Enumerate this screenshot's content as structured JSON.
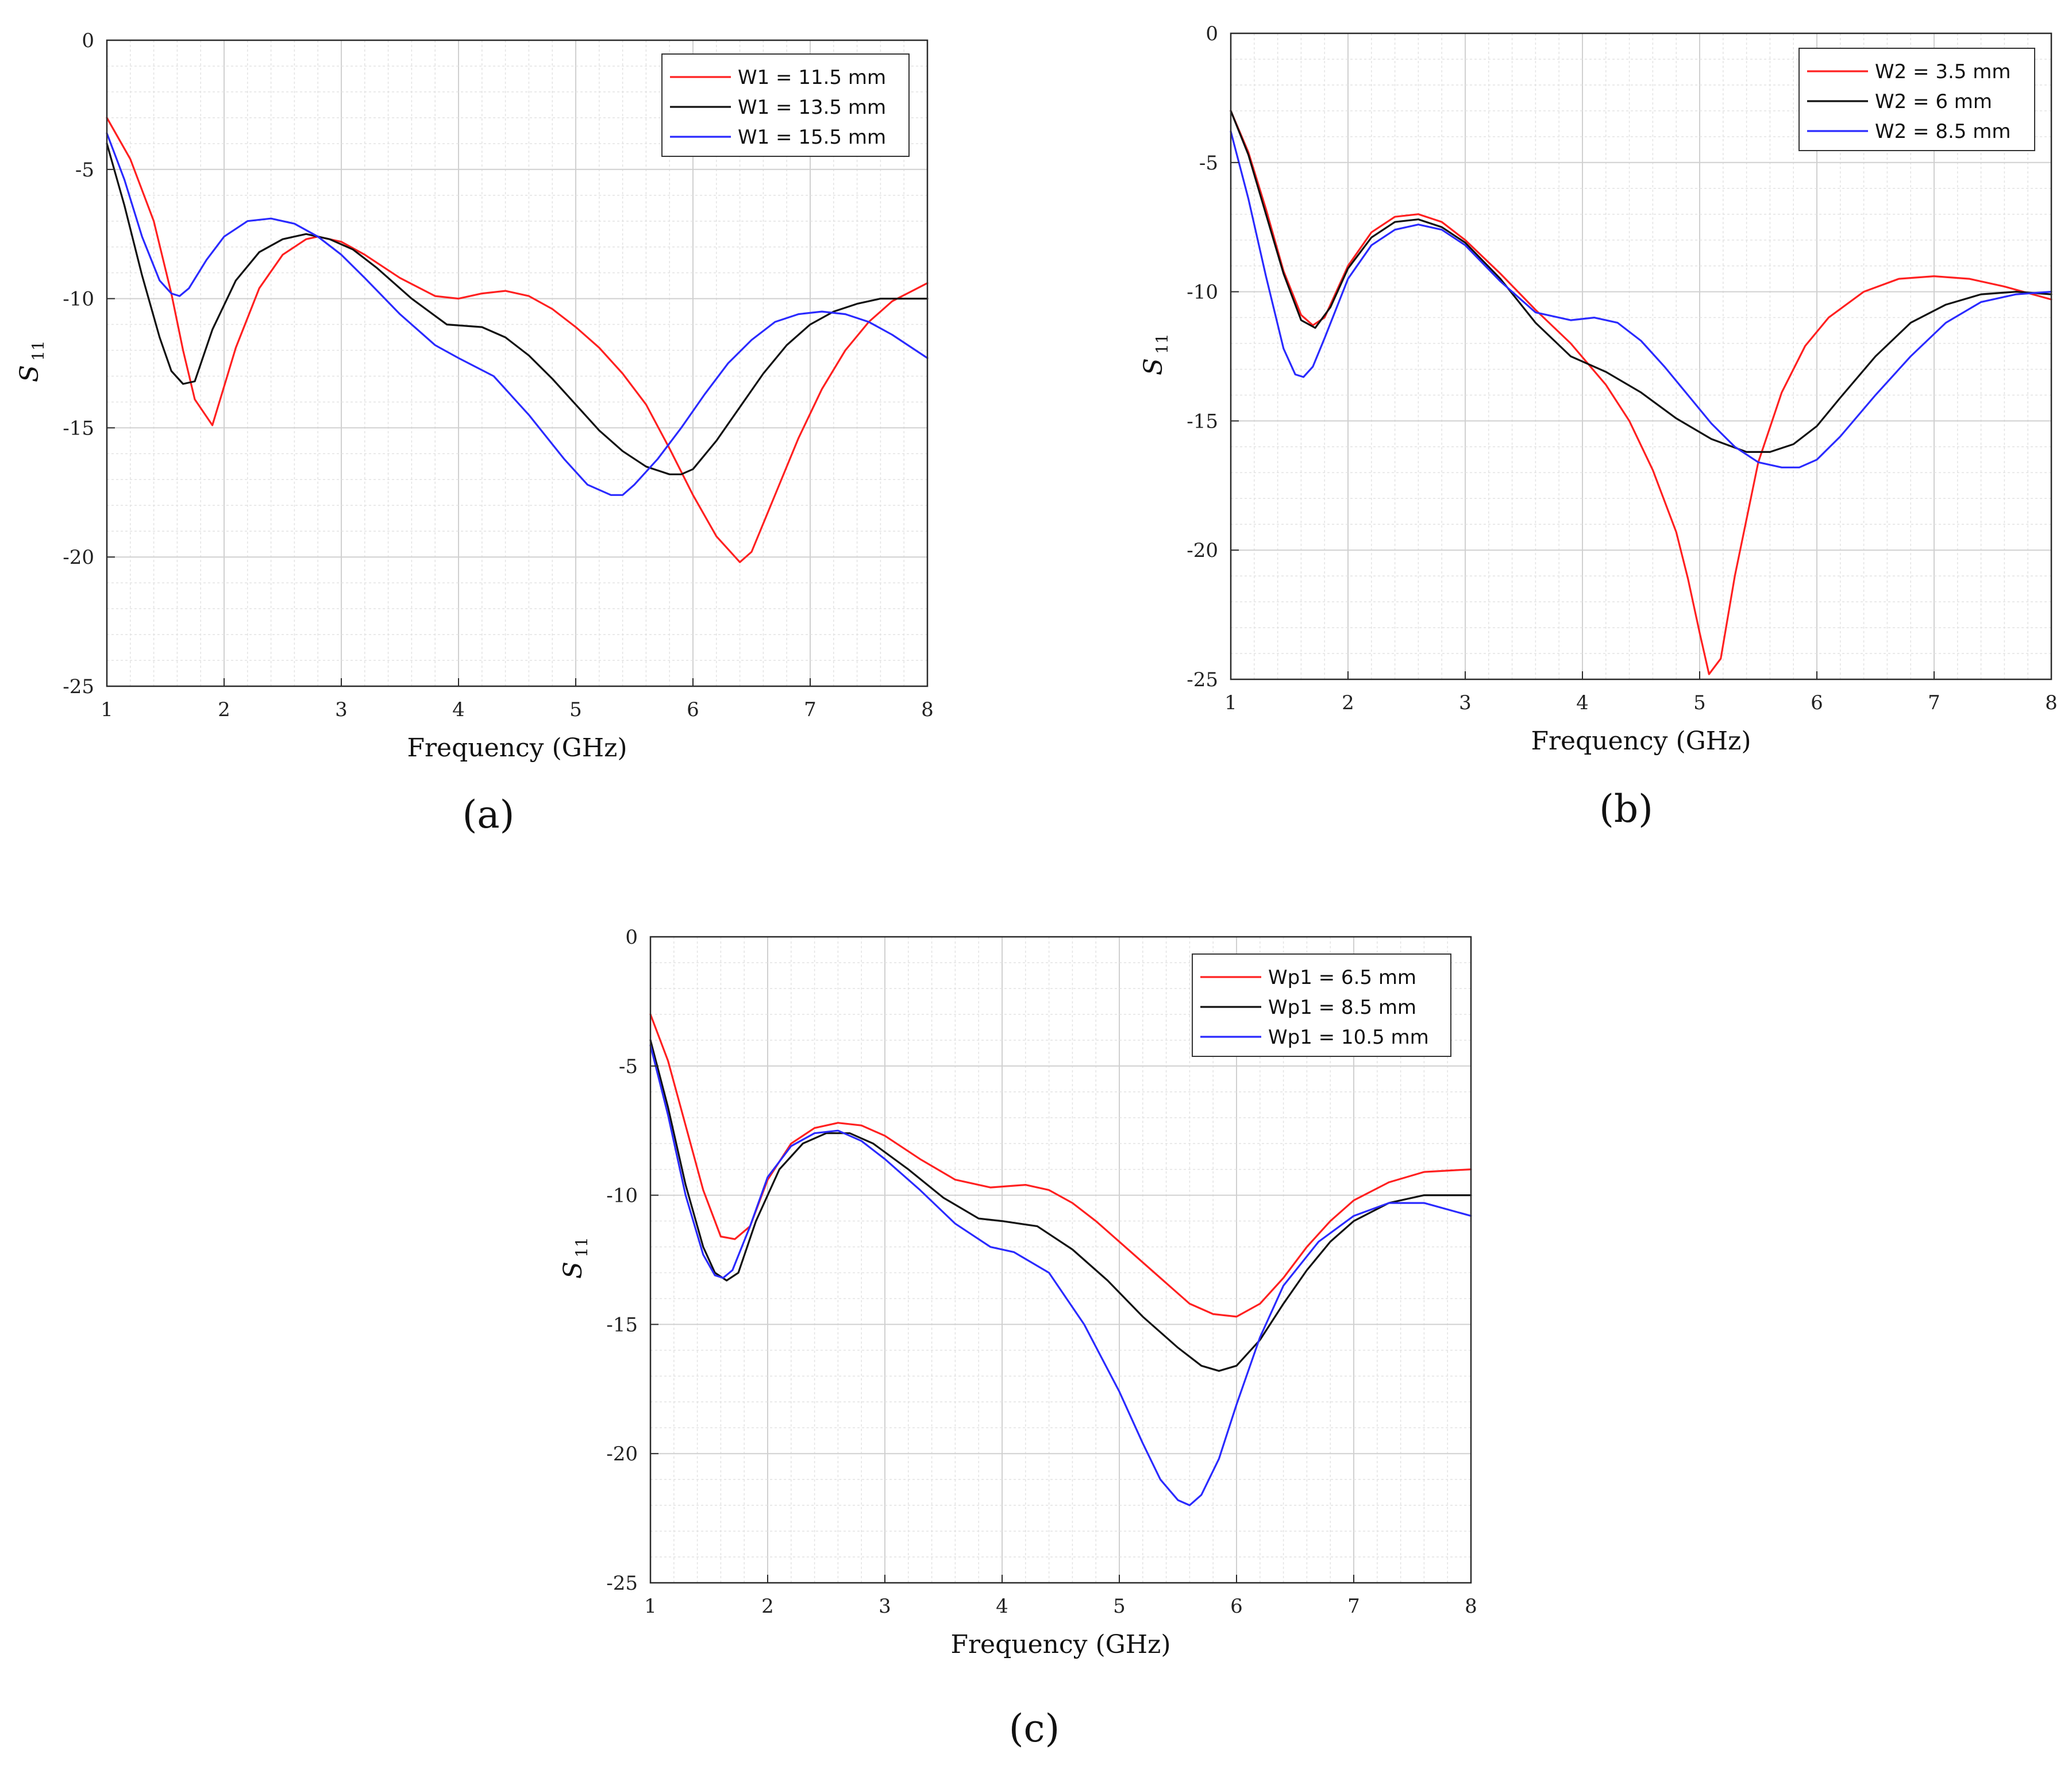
{
  "chart_data": [
    {
      "type": "line",
      "panel_label": "(a)",
      "xlabel": "Frequency (GHz)",
      "ylabel": "S",
      "ylabel_sub": "11",
      "xlim": [
        1,
        8
      ],
      "ylim": [
        -25,
        0
      ],
      "xticks": [
        1,
        2,
        3,
        4,
        5,
        6,
        7,
        8
      ],
      "yticks": [
        0,
        -5,
        -10,
        -15,
        -20,
        -25
      ],
      "grid": true,
      "legend_position": "top-right",
      "series": [
        {
          "name": "W1 = 11.5 mm",
          "color": "#ff2020",
          "x": [
            1,
            1.2,
            1.4,
            1.55,
            1.65,
            1.75,
            1.9,
            2.1,
            2.3,
            2.5,
            2.7,
            2.8,
            3.0,
            3.2,
            3.5,
            3.8,
            4.0,
            4.2,
            4.4,
            4.6,
            4.8,
            5.0,
            5.2,
            5.4,
            5.6,
            5.8,
            6.0,
            6.2,
            6.4,
            6.5,
            6.7,
            6.9,
            7.1,
            7.3,
            7.5,
            7.7,
            8.0
          ],
          "y": [
            -3.0,
            -4.6,
            -7.0,
            -9.8,
            -12.0,
            -13.9,
            -14.9,
            -11.9,
            -9.6,
            -8.3,
            -7.7,
            -7.6,
            -7.8,
            -8.3,
            -9.2,
            -9.9,
            -10.0,
            -9.8,
            -9.7,
            -9.9,
            -10.4,
            -11.1,
            -11.9,
            -12.9,
            -14.1,
            -15.8,
            -17.6,
            -19.2,
            -20.2,
            -19.8,
            -17.6,
            -15.4,
            -13.5,
            -12.0,
            -10.9,
            -10.1,
            -9.4
          ]
        },
        {
          "name": "W1 = 13.5 mm",
          "color": "#111111",
          "x": [
            1,
            1.15,
            1.3,
            1.45,
            1.55,
            1.65,
            1.75,
            1.9,
            2.1,
            2.3,
            2.5,
            2.7,
            2.9,
            3.1,
            3.3,
            3.6,
            3.9,
            4.2,
            4.4,
            4.6,
            4.8,
            5.0,
            5.2,
            5.4,
            5.6,
            5.8,
            5.9,
            6.0,
            6.2,
            6.4,
            6.6,
            6.8,
            7.0,
            7.2,
            7.4,
            7.6,
            7.8,
            8.0
          ],
          "y": [
            -4.0,
            -6.4,
            -9.1,
            -11.5,
            -12.8,
            -13.3,
            -13.2,
            -11.2,
            -9.3,
            -8.2,
            -7.7,
            -7.5,
            -7.7,
            -8.1,
            -8.8,
            -10.0,
            -11.0,
            -11.1,
            -11.5,
            -12.2,
            -13.1,
            -14.1,
            -15.1,
            -15.9,
            -16.5,
            -16.8,
            -16.8,
            -16.6,
            -15.5,
            -14.2,
            -12.9,
            -11.8,
            -11.0,
            -10.5,
            -10.2,
            -10.0,
            -10.0,
            -10.0
          ]
        },
        {
          "name": "W1 = 15.5 mm",
          "color": "#2a2aff",
          "x": [
            1,
            1.15,
            1.3,
            1.45,
            1.55,
            1.62,
            1.7,
            1.85,
            2.0,
            2.2,
            2.4,
            2.6,
            2.8,
            3.0,
            3.2,
            3.5,
            3.8,
            4.0,
            4.3,
            4.6,
            4.9,
            5.1,
            5.3,
            5.4,
            5.5,
            5.7,
            5.9,
            6.1,
            6.3,
            6.5,
            6.7,
            6.9,
            7.1,
            7.3,
            7.5,
            7.7,
            8.0
          ],
          "y": [
            -3.6,
            -5.4,
            -7.6,
            -9.3,
            -9.8,
            -9.9,
            -9.6,
            -8.5,
            -7.6,
            -7.0,
            -6.9,
            -7.1,
            -7.6,
            -8.3,
            -9.2,
            -10.6,
            -11.8,
            -12.3,
            -13.0,
            -14.5,
            -16.2,
            -17.2,
            -17.6,
            -17.6,
            -17.2,
            -16.2,
            -15.0,
            -13.7,
            -12.5,
            -11.6,
            -10.9,
            -10.6,
            -10.5,
            -10.6,
            -10.9,
            -11.4,
            -12.3
          ]
        }
      ]
    },
    {
      "type": "line",
      "panel_label": "(b)",
      "xlabel": "Frequency (GHz)",
      "ylabel": "S",
      "ylabel_sub": "11",
      "xlim": [
        1,
        8
      ],
      "ylim": [
        -25,
        0
      ],
      "xticks": [
        1,
        2,
        3,
        4,
        5,
        6,
        7,
        8
      ],
      "yticks": [
        0,
        -5,
        -10,
        -15,
        -20,
        -25
      ],
      "grid": true,
      "legend_position": "top-right",
      "series": [
        {
          "name": "W2 = 3.5 mm",
          "color": "#ff2020",
          "x": [
            1,
            1.15,
            1.3,
            1.45,
            1.6,
            1.7,
            1.8,
            2.0,
            2.2,
            2.4,
            2.6,
            2.8,
            3.0,
            3.3,
            3.6,
            3.9,
            4.2,
            4.4,
            4.6,
            4.8,
            4.9,
            5.0,
            5.08,
            5.18,
            5.3,
            5.5,
            5.7,
            5.9,
            6.1,
            6.4,
            6.7,
            7.0,
            7.3,
            7.6,
            8.0
          ],
          "y": [
            -3.0,
            -4.6,
            -6.8,
            -9.2,
            -10.9,
            -11.3,
            -11.0,
            -9.0,
            -7.7,
            -7.1,
            -7.0,
            -7.3,
            -8.0,
            -9.3,
            -10.7,
            -12.0,
            -13.6,
            -15.0,
            -16.9,
            -19.3,
            -21.1,
            -23.2,
            -24.8,
            -24.2,
            -21.0,
            -16.6,
            -13.9,
            -12.1,
            -11.0,
            -10.0,
            -9.5,
            -9.4,
            -9.5,
            -9.8,
            -10.3
          ]
        },
        {
          "name": "W2 = 6 mm",
          "color": "#111111",
          "x": [
            1,
            1.15,
            1.3,
            1.45,
            1.6,
            1.72,
            1.85,
            2.0,
            2.2,
            2.4,
            2.6,
            2.8,
            3.0,
            3.3,
            3.6,
            3.9,
            4.2,
            4.5,
            4.8,
            5.1,
            5.4,
            5.6,
            5.8,
            6.0,
            6.2,
            6.5,
            6.8,
            7.1,
            7.4,
            7.7,
            8.0
          ],
          "y": [
            -3.0,
            -4.7,
            -7.0,
            -9.3,
            -11.1,
            -11.4,
            -10.6,
            -9.1,
            -7.9,
            -7.3,
            -7.2,
            -7.5,
            -8.1,
            -9.5,
            -11.2,
            -12.5,
            -13.1,
            -13.9,
            -14.9,
            -15.7,
            -16.2,
            -16.2,
            -15.9,
            -15.2,
            -14.1,
            -12.5,
            -11.2,
            -10.5,
            -10.1,
            -10.0,
            -10.1
          ]
        },
        {
          "name": "W2 = 8.5 mm",
          "color": "#2a2aff",
          "x": [
            1,
            1.15,
            1.3,
            1.45,
            1.55,
            1.62,
            1.7,
            1.8,
            2.0,
            2.2,
            2.4,
            2.6,
            2.8,
            3.0,
            3.3,
            3.6,
            3.9,
            4.1,
            4.3,
            4.5,
            4.7,
            4.9,
            5.1,
            5.3,
            5.5,
            5.7,
            5.85,
            6.0,
            6.2,
            6.5,
            6.8,
            7.1,
            7.4,
            7.7,
            8.0
          ],
          "y": [
            -3.8,
            -6.4,
            -9.4,
            -12.2,
            -13.2,
            -13.3,
            -12.9,
            -11.8,
            -9.5,
            -8.2,
            -7.6,
            -7.4,
            -7.6,
            -8.2,
            -9.6,
            -10.8,
            -11.1,
            -11.0,
            -11.2,
            -11.9,
            -12.9,
            -14.0,
            -15.1,
            -16.0,
            -16.6,
            -16.8,
            -16.8,
            -16.5,
            -15.6,
            -14.0,
            -12.5,
            -11.2,
            -10.4,
            -10.1,
            -10.0
          ]
        }
      ]
    },
    {
      "type": "line",
      "panel_label": "(c)",
      "xlabel": "Frequency (GHz)",
      "ylabel": "S",
      "ylabel_sub": "11",
      "xlim": [
        1,
        8
      ],
      "ylim": [
        -25,
        0
      ],
      "xticks": [
        1,
        2,
        3,
        4,
        5,
        6,
        7,
        8
      ],
      "yticks": [
        0,
        -5,
        -10,
        -15,
        -20,
        -25
      ],
      "grid": true,
      "legend_position": "top-right",
      "series": [
        {
          "name": "Wp1 = 6.5 mm",
          "color": "#ff2020",
          "x": [
            1,
            1.15,
            1.3,
            1.45,
            1.6,
            1.72,
            1.85,
            2.0,
            2.2,
            2.4,
            2.6,
            2.8,
            3.0,
            3.3,
            3.6,
            3.9,
            4.2,
            4.4,
            4.6,
            4.8,
            5.0,
            5.2,
            5.4,
            5.6,
            5.8,
            6.0,
            6.2,
            6.4,
            6.6,
            6.8,
            7.0,
            7.3,
            7.6,
            8.0
          ],
          "y": [
            -3.0,
            -4.8,
            -7.3,
            -9.8,
            -11.6,
            -11.7,
            -11.2,
            -9.4,
            -8.0,
            -7.4,
            -7.2,
            -7.3,
            -7.7,
            -8.6,
            -9.4,
            -9.7,
            -9.6,
            -9.8,
            -10.3,
            -11.0,
            -11.8,
            -12.6,
            -13.4,
            -14.2,
            -14.6,
            -14.7,
            -14.2,
            -13.2,
            -12.0,
            -11.0,
            -10.2,
            -9.5,
            -9.1,
            -9.0
          ]
        },
        {
          "name": "Wp1 = 8.5 mm",
          "color": "#111111",
          "x": [
            1,
            1.15,
            1.3,
            1.45,
            1.55,
            1.65,
            1.75,
            1.9,
            2.1,
            2.3,
            2.5,
            2.7,
            2.9,
            3.2,
            3.5,
            3.8,
            4.0,
            4.3,
            4.6,
            4.9,
            5.2,
            5.5,
            5.7,
            5.85,
            6.0,
            6.2,
            6.4,
            6.6,
            6.8,
            7.0,
            7.3,
            7.6,
            8.0
          ],
          "y": [
            -4.0,
            -6.6,
            -9.6,
            -12.0,
            -13.0,
            -13.3,
            -13.0,
            -11.0,
            -9.0,
            -8.0,
            -7.6,
            -7.6,
            -8.0,
            -9.0,
            -10.1,
            -10.9,
            -11.0,
            -11.2,
            -12.1,
            -13.3,
            -14.7,
            -15.9,
            -16.6,
            -16.8,
            -16.6,
            -15.6,
            -14.2,
            -12.9,
            -11.8,
            -11.0,
            -10.3,
            -10.0,
            -10.0
          ]
        },
        {
          "name": "Wp1 = 10.5 mm",
          "color": "#2a2aff",
          "x": [
            1,
            1.15,
            1.3,
            1.45,
            1.55,
            1.62,
            1.7,
            1.85,
            2.0,
            2.2,
            2.4,
            2.6,
            2.8,
            3.0,
            3.3,
            3.6,
            3.9,
            4.1,
            4.4,
            4.7,
            5.0,
            5.2,
            5.35,
            5.5,
            5.6,
            5.7,
            5.85,
            6.0,
            6.2,
            6.4,
            6.7,
            7.0,
            7.3,
            7.6,
            8.0
          ],
          "y": [
            -4.2,
            -6.9,
            -10.0,
            -12.3,
            -13.1,
            -13.2,
            -12.9,
            -11.2,
            -9.3,
            -8.1,
            -7.6,
            -7.5,
            -7.9,
            -8.6,
            -9.8,
            -11.1,
            -12.0,
            -12.2,
            -13.0,
            -15.0,
            -17.6,
            -19.6,
            -21.0,
            -21.8,
            -22.0,
            -21.6,
            -20.2,
            -18.1,
            -15.5,
            -13.5,
            -11.8,
            -10.8,
            -10.3,
            -10.3,
            -10.8
          ]
        }
      ]
    }
  ]
}
